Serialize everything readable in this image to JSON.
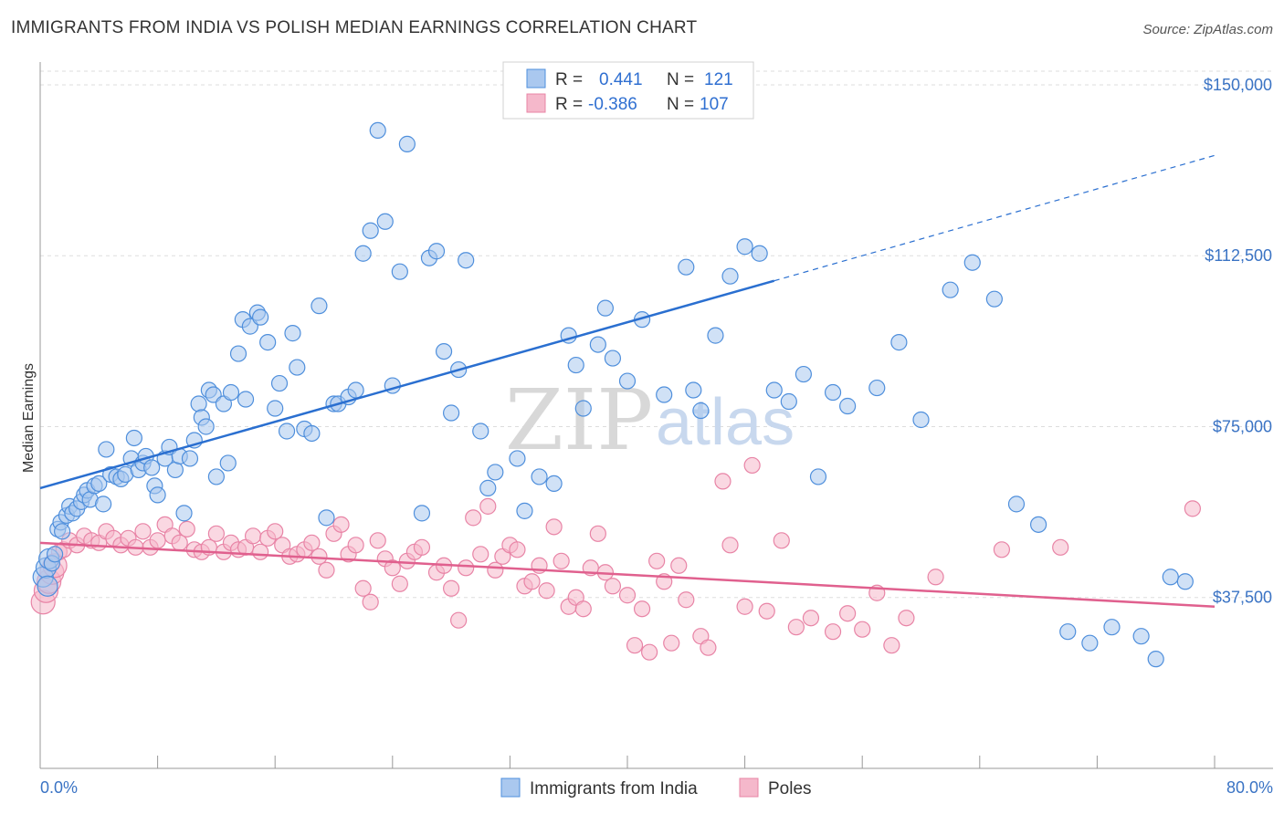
{
  "title": "IMMIGRANTS FROM INDIA VS POLISH MEDIAN EARNINGS CORRELATION CHART",
  "source": "Source: ZipAtlas.com",
  "watermark": {
    "part1": "ZIP",
    "part2": "atlas"
  },
  "colors": {
    "blue_fill": "#aac8ef",
    "blue_stroke": "#4f8fdc",
    "blue_line": "#2a6fd0",
    "pink_fill": "#f5b8cb",
    "pink_stroke": "#e884a6",
    "pink_line": "#e0608e",
    "grid": "#dddddd",
    "tick_text": "#3a73c4"
  },
  "stats": {
    "r_label": "R =",
    "n_label": "N =",
    "india": {
      "r": "0.441",
      "n": "121"
    },
    "poles": {
      "r": "-0.386",
      "n": "107"
    }
  },
  "chart_data": {
    "type": "scatter",
    "title": "IMMIGRANTS FROM INDIA VS POLISH MEDIAN EARNINGS CORRELATION CHART",
    "xlabel": "",
    "ylabel": "Median Earnings",
    "xlim": [
      0,
      80
    ],
    "ylim": [
      0,
      155000
    ],
    "x_tick_labels": [
      "0.0%",
      "80.0%"
    ],
    "y_ticks": [
      {
        "value": 37500,
        "label": "$37,500"
      },
      {
        "value": 75000,
        "label": "$75,000"
      },
      {
        "value": 112500,
        "label": "$112,500"
      },
      {
        "value": 150000,
        "label": "$150,000"
      }
    ],
    "grid": true,
    "legend_position": "bottom-center",
    "series": [
      {
        "name": "Immigrants from India",
        "color": "#4f8fdc",
        "trend": {
          "x0": 0,
          "y0": 61500,
          "x1": 50,
          "y1": 107000,
          "dash_to_x": 80,
          "dash_to_y": 134500
        },
        "points": [
          [
            0.2,
            42000
          ],
          [
            0.4,
            44000
          ],
          [
            0.5,
            40000
          ],
          [
            0.6,
            46000
          ],
          [
            0.8,
            45000
          ],
          [
            1.0,
            47000
          ],
          [
            1.2,
            52500
          ],
          [
            1.4,
            54000
          ],
          [
            1.5,
            52000
          ],
          [
            1.8,
            55500
          ],
          [
            2.0,
            57500
          ],
          [
            2.2,
            56000
          ],
          [
            2.5,
            57000
          ],
          [
            2.8,
            58500
          ],
          [
            3.0,
            60000
          ],
          [
            3.2,
            61000
          ],
          [
            3.4,
            59000
          ],
          [
            3.7,
            62000
          ],
          [
            4.0,
            62500
          ],
          [
            4.3,
            58000
          ],
          [
            4.5,
            70000
          ],
          [
            4.8,
            64500
          ],
          [
            5.2,
            64000
          ],
          [
            5.5,
            63500
          ],
          [
            5.8,
            64500
          ],
          [
            6.2,
            68000
          ],
          [
            6.4,
            72500
          ],
          [
            6.7,
            65500
          ],
          [
            7.0,
            67000
          ],
          [
            7.2,
            68500
          ],
          [
            7.6,
            66000
          ],
          [
            7.8,
            62000
          ],
          [
            8.0,
            60000
          ],
          [
            8.5,
            68000
          ],
          [
            8.8,
            70500
          ],
          [
            9.2,
            65500
          ],
          [
            9.5,
            68500
          ],
          [
            9.8,
            56000
          ],
          [
            10.2,
            68000
          ],
          [
            10.5,
            72000
          ],
          [
            10.8,
            80000
          ],
          [
            11.0,
            77000
          ],
          [
            11.3,
            75000
          ],
          [
            11.5,
            83000
          ],
          [
            11.8,
            82000
          ],
          [
            12.0,
            64000
          ],
          [
            12.5,
            80000
          ],
          [
            12.8,
            67000
          ],
          [
            13.0,
            82500
          ],
          [
            13.5,
            91000
          ],
          [
            13.8,
            98500
          ],
          [
            14.0,
            81000
          ],
          [
            14.3,
            97000
          ],
          [
            14.8,
            100000
          ],
          [
            15.0,
            99000
          ],
          [
            15.5,
            93500
          ],
          [
            16.0,
            79000
          ],
          [
            16.3,
            84500
          ],
          [
            16.8,
            74000
          ],
          [
            17.2,
            95500
          ],
          [
            17.5,
            88000
          ],
          [
            18.0,
            74500
          ],
          [
            18.5,
            73500
          ],
          [
            19.0,
            101500
          ],
          [
            19.5,
            55000
          ],
          [
            20.0,
            80000
          ],
          [
            20.3,
            80000
          ],
          [
            21.0,
            81500
          ],
          [
            21.5,
            83000
          ],
          [
            22.0,
            113000
          ],
          [
            22.5,
            118000
          ],
          [
            23.0,
            140000
          ],
          [
            23.5,
            120000
          ],
          [
            24.0,
            84000
          ],
          [
            24.5,
            109000
          ],
          [
            25.0,
            137000
          ],
          [
            26.0,
            56000
          ],
          [
            26.5,
            112000
          ],
          [
            27.0,
            113500
          ],
          [
            27.5,
            91500
          ],
          [
            28.0,
            78000
          ],
          [
            28.5,
            87500
          ],
          [
            29.0,
            111500
          ],
          [
            30.0,
            74000
          ],
          [
            30.5,
            61500
          ],
          [
            31.0,
            65000
          ],
          [
            32.5,
            68000
          ],
          [
            33.0,
            56500
          ],
          [
            34.0,
            64000
          ],
          [
            35.0,
            62500
          ],
          [
            36.0,
            95000
          ],
          [
            36.5,
            88500
          ],
          [
            37.0,
            79000
          ],
          [
            38.0,
            93000
          ],
          [
            38.5,
            101000
          ],
          [
            39.0,
            90000
          ],
          [
            40.0,
            85000
          ],
          [
            41.0,
            98500
          ],
          [
            42.5,
            82000
          ],
          [
            44.0,
            110000
          ],
          [
            44.5,
            83000
          ],
          [
            45.0,
            78500
          ],
          [
            46.0,
            95000
          ],
          [
            47.0,
            108000
          ],
          [
            48.0,
            114500
          ],
          [
            49.0,
            113000
          ],
          [
            50.0,
            83000
          ],
          [
            51.0,
            80500
          ],
          [
            52.0,
            86500
          ],
          [
            53.0,
            64000
          ],
          [
            54.0,
            82500
          ],
          [
            55.0,
            79500
          ],
          [
            57.0,
            83500
          ],
          [
            58.5,
            93500
          ],
          [
            60.0,
            76500
          ],
          [
            62.0,
            105000
          ],
          [
            63.5,
            111000
          ],
          [
            65.0,
            103000
          ],
          [
            66.5,
            58000
          ],
          [
            68.0,
            53500
          ],
          [
            70.0,
            30000
          ],
          [
            71.5,
            27500
          ],
          [
            73.0,
            31000
          ],
          [
            75.0,
            29000
          ],
          [
            76.0,
            24000
          ],
          [
            77.0,
            42000
          ],
          [
            78.0,
            41000
          ]
        ]
      },
      {
        "name": "Poles",
        "color": "#e884a6",
        "trend": {
          "x0": 0,
          "y0": 49500,
          "x1": 80,
          "y1": 35500
        },
        "points": [
          [
            0.2,
            36500
          ],
          [
            0.4,
            39000
          ],
          [
            0.6,
            41000
          ],
          [
            0.8,
            43000
          ],
          [
            1.0,
            44500
          ],
          [
            1.3,
            47500
          ],
          [
            1.6,
            48000
          ],
          [
            2.0,
            50000
          ],
          [
            2.5,
            49000
          ],
          [
            3.0,
            51000
          ],
          [
            3.5,
            50000
          ],
          [
            4.0,
            49500
          ],
          [
            4.5,
            52000
          ],
          [
            5.0,
            50500
          ],
          [
            5.5,
            49000
          ],
          [
            6.0,
            50500
          ],
          [
            6.5,
            48500
          ],
          [
            7.0,
            52000
          ],
          [
            7.5,
            48500
          ],
          [
            8.0,
            50000
          ],
          [
            8.5,
            53500
          ],
          [
            9.0,
            51000
          ],
          [
            9.5,
            49500
          ],
          [
            10.0,
            52500
          ],
          [
            10.5,
            48000
          ],
          [
            11.0,
            47500
          ],
          [
            11.5,
            48500
          ],
          [
            12.0,
            51500
          ],
          [
            12.5,
            47500
          ],
          [
            13.0,
            49500
          ],
          [
            13.5,
            48000
          ],
          [
            14.0,
            48500
          ],
          [
            14.5,
            51000
          ],
          [
            15.0,
            47500
          ],
          [
            15.5,
            50500
          ],
          [
            16.0,
            52000
          ],
          [
            16.5,
            49000
          ],
          [
            17.0,
            46500
          ],
          [
            17.5,
            47000
          ],
          [
            18.0,
            48000
          ],
          [
            18.5,
            49500
          ],
          [
            19.0,
            46500
          ],
          [
            19.5,
            43500
          ],
          [
            20.0,
            51500
          ],
          [
            20.5,
            53500
          ],
          [
            21.0,
            47000
          ],
          [
            21.5,
            49000
          ],
          [
            22.0,
            39500
          ],
          [
            22.5,
            36500
          ],
          [
            23.0,
            50000
          ],
          [
            23.5,
            46000
          ],
          [
            24.0,
            44000
          ],
          [
            24.5,
            40500
          ],
          [
            25.0,
            45500
          ],
          [
            25.5,
            47500
          ],
          [
            26.0,
            48500
          ],
          [
            27.0,
            43000
          ],
          [
            27.5,
            44500
          ],
          [
            28.0,
            39500
          ],
          [
            28.5,
            32500
          ],
          [
            29.0,
            44000
          ],
          [
            29.5,
            55000
          ],
          [
            30.0,
            47000
          ],
          [
            30.5,
            57500
          ],
          [
            31.0,
            43500
          ],
          [
            31.5,
            46500
          ],
          [
            32.0,
            49000
          ],
          [
            32.5,
            48000
          ],
          [
            33.0,
            40000
          ],
          [
            33.5,
            41000
          ],
          [
            34.0,
            44500
          ],
          [
            34.5,
            39000
          ],
          [
            35.0,
            53000
          ],
          [
            35.5,
            45500
          ],
          [
            36.0,
            35500
          ],
          [
            36.5,
            37500
          ],
          [
            37.0,
            35000
          ],
          [
            37.5,
            44000
          ],
          [
            38.0,
            51500
          ],
          [
            38.5,
            43000
          ],
          [
            39.0,
            40000
          ],
          [
            40.0,
            38000
          ],
          [
            40.5,
            27000
          ],
          [
            41.0,
            35000
          ],
          [
            41.5,
            25500
          ],
          [
            42.0,
            45500
          ],
          [
            42.5,
            41000
          ],
          [
            43.0,
            27500
          ],
          [
            43.5,
            44500
          ],
          [
            44.0,
            37000
          ],
          [
            45.0,
            29000
          ],
          [
            45.5,
            26500
          ],
          [
            46.5,
            63000
          ],
          [
            47.0,
            49000
          ],
          [
            48.0,
            35500
          ],
          [
            48.5,
            66500
          ],
          [
            49.5,
            34500
          ],
          [
            50.5,
            50000
          ],
          [
            51.5,
            31000
          ],
          [
            52.5,
            33000
          ],
          [
            54.0,
            30000
          ],
          [
            55.0,
            34000
          ],
          [
            56.0,
            30500
          ],
          [
            57.0,
            38500
          ],
          [
            58.0,
            27000
          ],
          [
            59.0,
            33000
          ],
          [
            61.0,
            42000
          ],
          [
            65.5,
            48000
          ],
          [
            69.5,
            48500
          ],
          [
            78.5,
            57000
          ]
        ]
      }
    ]
  },
  "legend": {
    "india_label": "Immigrants from India",
    "poles_label": "Poles"
  }
}
